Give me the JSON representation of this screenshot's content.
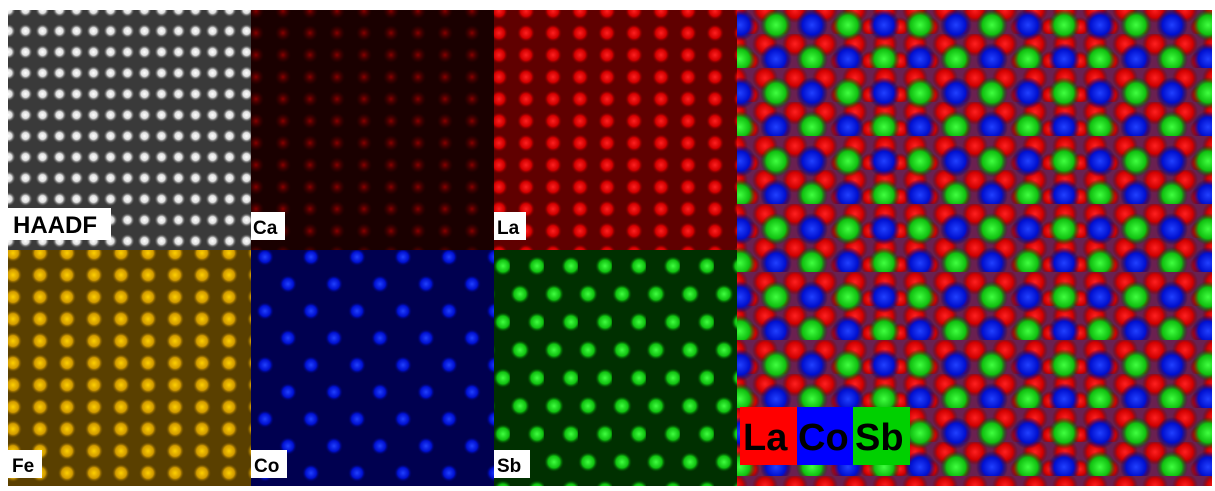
{
  "panels": [
    {
      "label": "HAADF"
    },
    {
      "label": "Ca"
    },
    {
      "label": "La"
    },
    {
      "label": "Fe"
    },
    {
      "label": "Co"
    },
    {
      "label": "Sb"
    }
  ],
  "composite": {
    "legend": [
      {
        "label": "La"
      },
      {
        "label": "Co"
      },
      {
        "label": "Sb"
      }
    ]
  }
}
